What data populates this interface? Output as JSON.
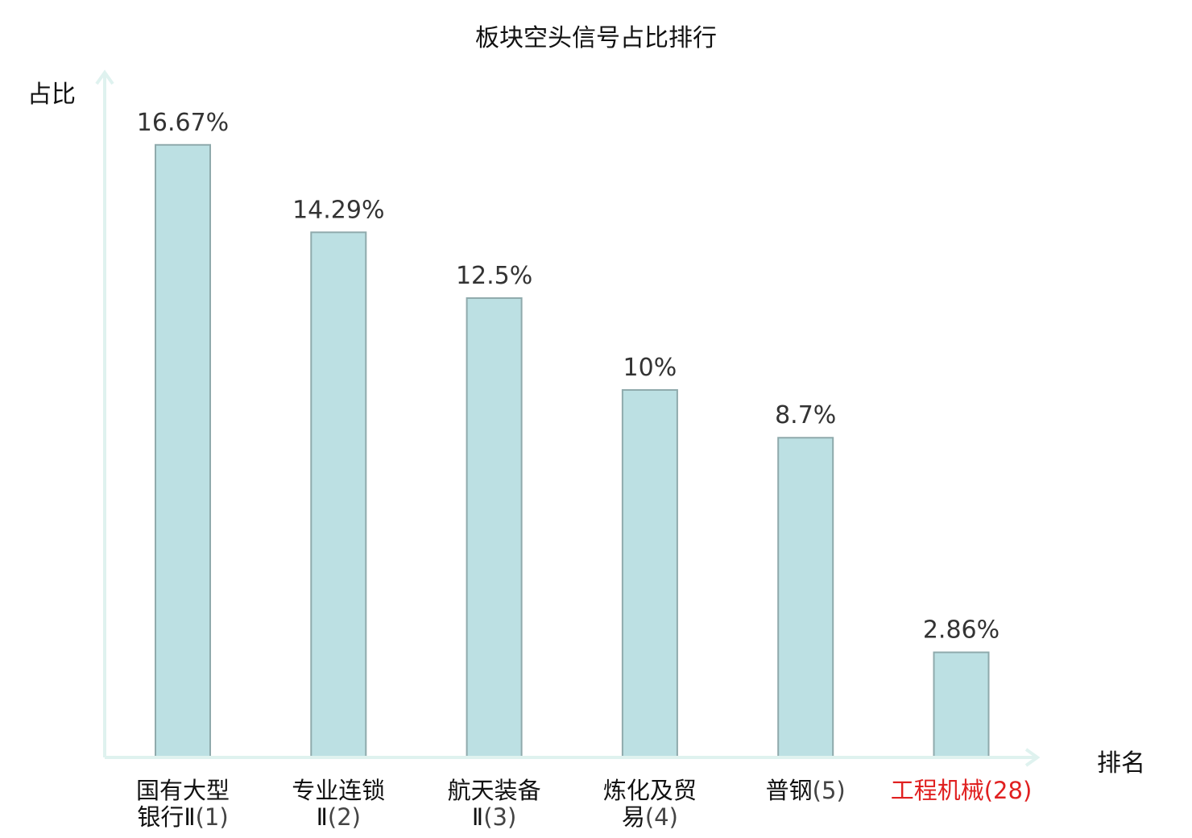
{
  "chart_data": {
    "type": "bar",
    "title": "板块空头信号占比排行",
    "ylabel": "占比",
    "xlabel": "排名",
    "ylim": [
      0,
      18.2
    ],
    "categories": [
      {
        "name": "国有大型银行Ⅱ",
        "rank": "(1)",
        "highlight": false
      },
      {
        "name": "专业连锁Ⅱ",
        "rank": "(2)",
        "highlight": false
      },
      {
        "name": "航天装备Ⅱ",
        "rank": "(3)",
        "highlight": false
      },
      {
        "name": "炼化及贸易",
        "rank": "(4)",
        "highlight": false
      },
      {
        "name": "普钢",
        "rank": "(5)",
        "highlight": false
      },
      {
        "name": "工程机械",
        "rank": "(28)",
        "highlight": true
      }
    ],
    "values": [
      16.67,
      14.29,
      12.5,
      10,
      8.7,
      2.86
    ],
    "value_labels": [
      "16.67%",
      "14.29%",
      "12.5%",
      "10%",
      "8.7%",
      "2.86%"
    ],
    "grid": false,
    "colors": {
      "bar_fill": "#bce0e3",
      "bar_stroke": "#8faaac",
      "axis": "#dff2ef",
      "highlight": "#e02020",
      "value_label": "#333333"
    }
  }
}
